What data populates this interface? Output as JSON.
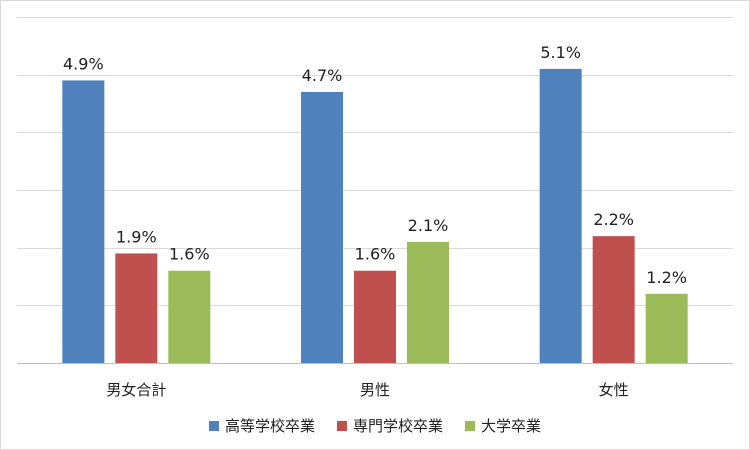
{
  "chart_data": {
    "type": "bar",
    "categories": [
      "男女合計",
      "男性",
      "女性"
    ],
    "series": [
      {
        "name": "高等学校卒業",
        "values": [
          4.9,
          4.7,
          5.1
        ],
        "labels": [
          "4.9%",
          "4.7%",
          "5.1%"
        ],
        "color": "#4f81bd"
      },
      {
        "name": "専門学校卒業",
        "values": [
          1.9,
          1.6,
          2.2
        ],
        "labels": [
          "1.9%",
          "1.6%",
          "2.2%"
        ],
        "color": "#c0504d"
      },
      {
        "name": "大学卒業",
        "values": [
          1.6,
          2.1,
          1.2
        ],
        "labels": [
          "1.6%",
          "2.1%",
          "1.2%"
        ],
        "color": "#9bbb59"
      }
    ],
    "ylim": [
      0,
      6
    ],
    "y_gridline_step": 1,
    "y_tick_labels_shown": false,
    "grid": true,
    "legend_position": "bottom",
    "title": "",
    "xlabel": "",
    "ylabel": ""
  }
}
